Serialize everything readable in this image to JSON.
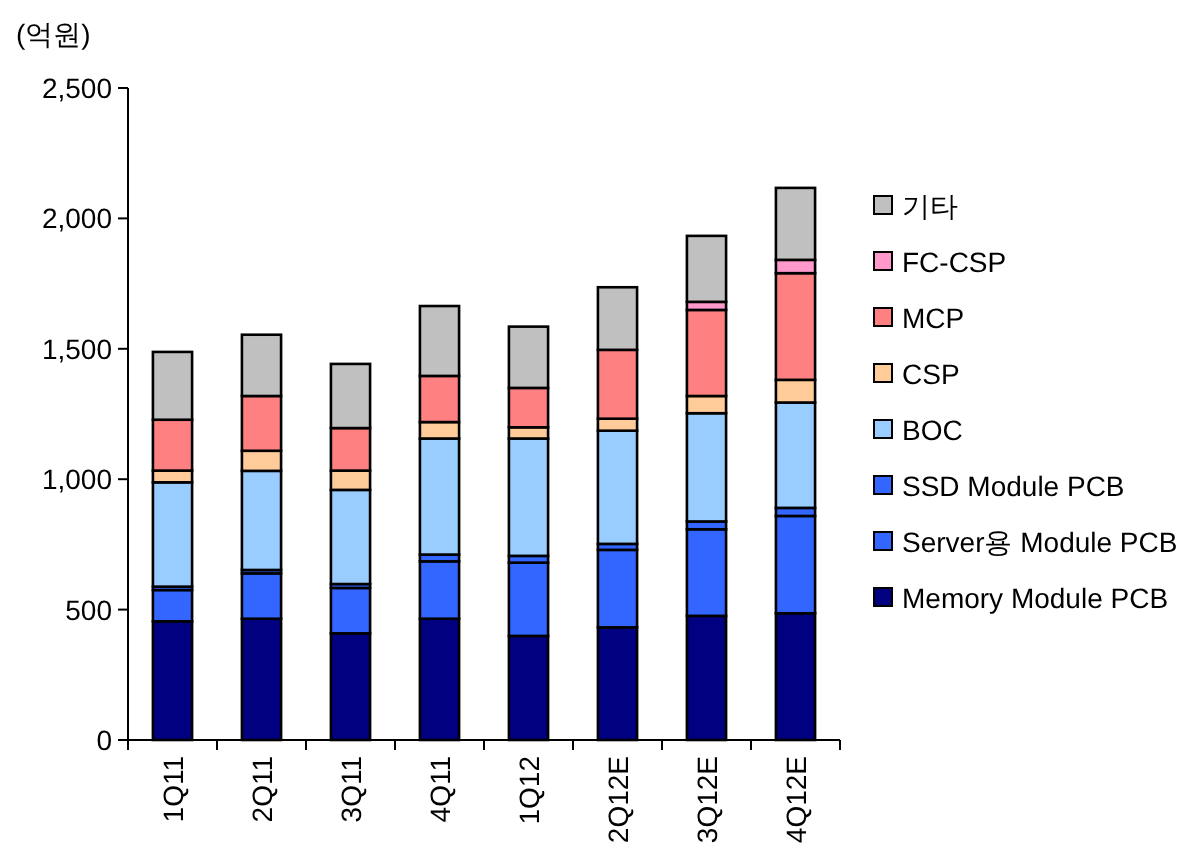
{
  "chart_data": {
    "type": "bar",
    "stacked": true,
    "ylabel": "(억원)",
    "categories": [
      "1Q11",
      "2Q11",
      "3Q11",
      "4Q11",
      "1Q12",
      "2Q12E",
      "3Q12E",
      "4Q12E"
    ],
    "ylim": [
      0,
      2500
    ],
    "yticks": [
      0,
      500,
      {
        "value": 1000,
        "label": "1,000"
      },
      {
        "value": 1500,
        "label": "1,500"
      },
      {
        "value": 2000,
        "label": "2,000"
      },
      {
        "value": 2500,
        "label": "2,500"
      }
    ],
    "legend": "right",
    "grid": false,
    "series": [
      {
        "name": "Memory Module PCB",
        "color": "#000080",
        "values": [
          455,
          465,
          409,
          465,
          399,
          432,
          476,
          486
        ]
      },
      {
        "name": "Server용 Module PCB",
        "color": "#3366ff",
        "values": [
          120,
          174,
          174,
          220,
          281,
          297,
          332,
          373
        ]
      },
      {
        "name": "SSD Module PCB",
        "color": "#3366ff",
        "values": [
          13,
          13,
          15,
          26,
          26,
          23,
          30,
          31
        ]
      },
      {
        "name": "BOC",
        "color": "#99ccff",
        "values": [
          400,
          380,
          361,
          445,
          450,
          434,
          415,
          404
        ]
      },
      {
        "name": "CSP",
        "color": "#ffcc99",
        "values": [
          45,
          77,
          74,
          63,
          43,
          46,
          66,
          87
        ]
      },
      {
        "name": "MCP",
        "color": "#ff8080",
        "values": [
          195,
          210,
          163,
          177,
          151,
          264,
          330,
          409
        ]
      },
      {
        "name": "FC-CSP",
        "color": "#ff99cc",
        "values": [
          0,
          0,
          null,
          0,
          0,
          0,
          31,
          51
        ]
      },
      {
        "name": "기타",
        "color": "#c0c0c0",
        "values": [
          260,
          235,
          246,
          268,
          235,
          240,
          253,
          276
        ]
      }
    ]
  }
}
